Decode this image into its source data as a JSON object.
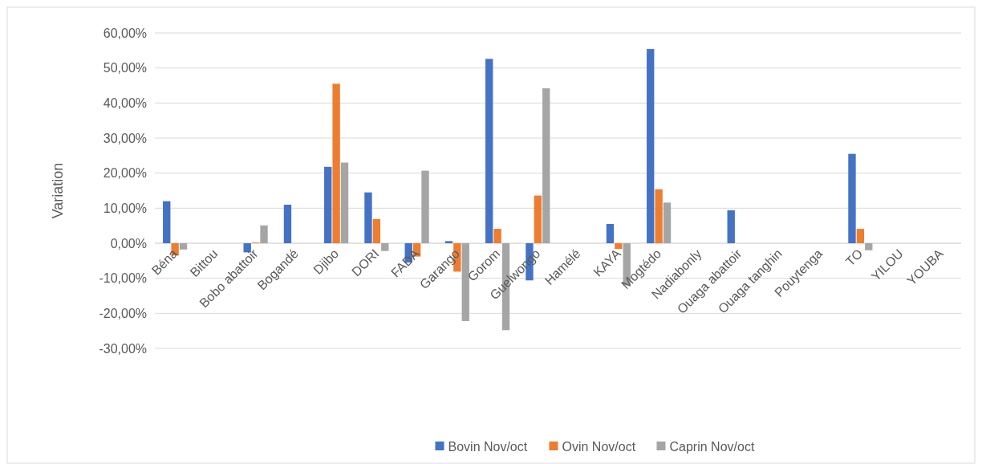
{
  "chart_data": {
    "type": "bar",
    "ylabel": "Variation",
    "categories": [
      "Béna",
      "Bittou",
      "Bobo abattoir",
      "Bogandé",
      "Djibo",
      "DORI",
      "FADA",
      "Garango",
      "Gorom",
      "Guelwongo",
      "Hamélé",
      "KAYA",
      "Mogtédo",
      "Nadiabonly",
      "Ouaga abattoir",
      "Ouaga tanghin",
      "Pouytenga",
      "TO",
      "YILOU",
      "YOUBA"
    ],
    "series": [
      {
        "name": "Bovin Nov/oct",
        "color": "#4472c4",
        "values": [
          12,
          null,
          -2.6,
          11,
          21.8,
          14.5,
          -5.5,
          0.6,
          52.6,
          -10.6,
          null,
          5.5,
          55.4,
          null,
          9.4,
          null,
          null,
          25.5,
          null,
          null
        ]
      },
      {
        "name": "Ovin Nov/oct",
        "color": "#ed7d31",
        "values": [
          -3.5,
          null,
          0.2,
          null,
          45.5,
          6.9,
          -3.8,
          -8.1,
          4.1,
          13.6,
          null,
          -1.6,
          15.4,
          null,
          null,
          null,
          null,
          4.1,
          null,
          null
        ]
      },
      {
        "name": "Caprin Nov/oct",
        "color": "#a5a5a5",
        "values": [
          -1.8,
          null,
          5.1,
          null,
          23,
          -2.2,
          20.7,
          -22.2,
          -24.8,
          44.2,
          null,
          -12,
          11.6,
          null,
          null,
          null,
          null,
          -2,
          null,
          null
        ]
      }
    ],
    "ylim": [
      -30,
      60
    ],
    "yticks": [
      {
        "value": -30,
        "label": "-30,00%"
      },
      {
        "value": -20,
        "label": "-20,00%"
      },
      {
        "value": -10,
        "label": "-10,00%"
      },
      {
        "value": 0,
        "label": "0,00%"
      },
      {
        "value": 10,
        "label": "10,00%"
      },
      {
        "value": 20,
        "label": "20,00%"
      },
      {
        "value": 30,
        "label": "30,00%"
      },
      {
        "value": 40,
        "label": "40,00%"
      },
      {
        "value": 50,
        "label": "50,00%"
      },
      {
        "value": 60,
        "label": "60,00%"
      }
    ],
    "grid": "y",
    "legend": "bottom"
  }
}
